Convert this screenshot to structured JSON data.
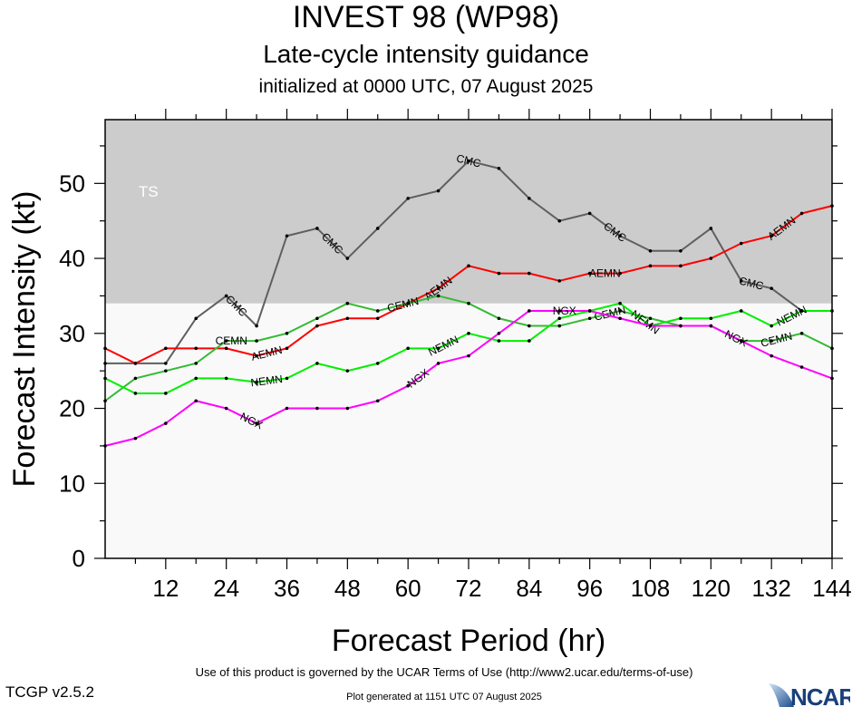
{
  "header": {
    "title": "INVEST 98 (WP98)",
    "subtitle": "Late-cycle intensity guidance",
    "initialized": "initialized at 0000 UTC, 07 August 2025"
  },
  "footer": {
    "terms": "Use of this product is governed by the UCAR Terms of Use (http://www2.ucar.edu/terms-of-use)",
    "version": "TCGP v2.5.2",
    "generated": "Plot generated at 1151 UTC   07 August 2025",
    "logo_text": "NCAR"
  },
  "chart_data": {
    "type": "line",
    "xlabel": "Forecast Period (hr)",
    "ylabel": "Forecast Intensity (kt)",
    "xlim": [
      0,
      144
    ],
    "ylim": [
      0,
      58.5
    ],
    "xticks": [
      12,
      24,
      36,
      48,
      60,
      72,
      84,
      96,
      108,
      120,
      132,
      144
    ],
    "yticks": [
      0,
      10,
      20,
      30,
      40,
      50
    ],
    "grid": false,
    "bands": [
      {
        "label": "TS",
        "from": 34,
        "to": 58.5,
        "color": "#cccccc"
      }
    ],
    "below_band_color": "#f9f9f9",
    "x": [
      0,
      6,
      12,
      18,
      24,
      30,
      36,
      42,
      48,
      54,
      60,
      66,
      72,
      78,
      84,
      90,
      96,
      102,
      108,
      114,
      120,
      126,
      132,
      138,
      144
    ],
    "series": [
      {
        "name": "CMC",
        "color": "#5f5f5f",
        "label_hours": [
          26,
          45,
          72,
          101,
          128
        ],
        "values": [
          26,
          26,
          26,
          32,
          35,
          31,
          43,
          44,
          40,
          44,
          48,
          49,
          53,
          52,
          48,
          45,
          46,
          43,
          41,
          41,
          44,
          37,
          36,
          33,
          null
        ]
      },
      {
        "name": "AEMN",
        "color": "#ff0000",
        "label_hours": [
          32,
          66,
          99,
          134
        ],
        "values": [
          28,
          26,
          28,
          28,
          28,
          27,
          28,
          31,
          32,
          32,
          34,
          36,
          39,
          38,
          38,
          37,
          38,
          38,
          39,
          39,
          40,
          42,
          43,
          46,
          47
        ]
      },
      {
        "name": "CEMN",
        "color": "#33bb33",
        "label_hours": [
          29,
          65,
          100,
          133
        ],
        "values": [
          21,
          24,
          25,
          26,
          29,
          29,
          30,
          32,
          34,
          33,
          34,
          35,
          34,
          32,
          31,
          31,
          32,
          33,
          32,
          31,
          31,
          29,
          29,
          30,
          28
        ]
      },
      {
        "name": "NEMN",
        "color": "#00ee00",
        "label_hours": [
          32,
          67,
          100,
          136
        ],
        "values": [
          24,
          22,
          22,
          24,
          24,
          23.5,
          24,
          26,
          25,
          26,
          28,
          28,
          30,
          29,
          29,
          32,
          33,
          34,
          31,
          32,
          32,
          33,
          31,
          33,
          33
        ]
      },
      {
        "name": "NGX",
        "color": "#ff00ff",
        "label_hours": [
          29,
          62,
          91,
          125
        ],
        "values": [
          15,
          16,
          18,
          21,
          20,
          18,
          20,
          20,
          20,
          21,
          23,
          26,
          27,
          30,
          33,
          33,
          33,
          32,
          31,
          31,
          31,
          29,
          27,
          25.5,
          24
        ]
      }
    ]
  }
}
